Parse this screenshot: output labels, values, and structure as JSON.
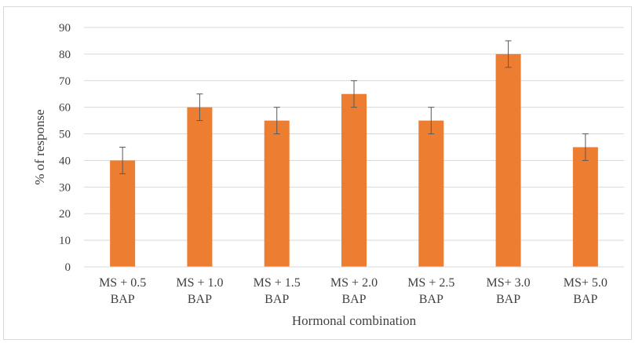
{
  "chart_data": {
    "type": "bar",
    "categories": [
      [
        "MS + 0.5",
        "BAP"
      ],
      [
        "MS + 1.0",
        "BAP"
      ],
      [
        "MS + 1.5",
        "BAP"
      ],
      [
        "MS + 2.0",
        "BAP"
      ],
      [
        "MS + 2.5",
        "BAP"
      ],
      [
        "MS+ 3.0",
        "BAP"
      ],
      [
        "MS+ 5.0",
        "BAP"
      ]
    ],
    "values": [
      40,
      60,
      55,
      65,
      55,
      80,
      45
    ],
    "error": [
      5,
      5,
      5,
      5,
      5,
      5,
      5
    ],
    "title": "",
    "xlabel": "Hormonal combination",
    "ylabel": "% of response",
    "ylim": [
      0,
      90
    ],
    "yticks": [
      0,
      10,
      20,
      30,
      40,
      50,
      60,
      70,
      80,
      90
    ],
    "grid": true,
    "legend": "none",
    "colors": {
      "bar": "#ED7D31",
      "grid": "#d9d9d9",
      "error_bar": "#595959",
      "text": "#404040"
    }
  }
}
